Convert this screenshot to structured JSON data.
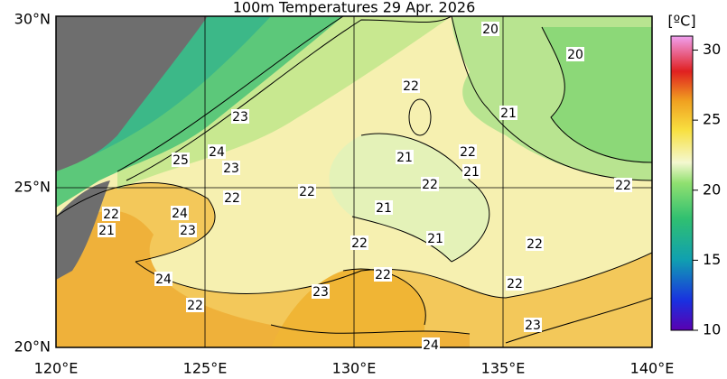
{
  "title": "100m Temperatures  29 Apr. 2026",
  "lat_labels": [
    "30°N",
    "25°N",
    "20°N"
  ],
  "lon_labels": [
    "120°E",
    "125°E",
    "130°E",
    "135°E",
    "140°E"
  ],
  "colorbar": {
    "unit": "[ºC]",
    "lim": [
      10,
      31
    ],
    "ticks": [
      10,
      15,
      20,
      25,
      30
    ]
  },
  "contour_labels": [
    "20",
    "20",
    "22",
    "21",
    "23",
    "22",
    "21",
    "21",
    "24",
    "25",
    "23",
    "22",
    "22",
    "22",
    "22",
    "22",
    "24",
    "21",
    "21",
    "23",
    "21",
    "22",
    "22",
    "22",
    "24",
    "22",
    "23",
    "22",
    "23",
    "24"
  ]
}
